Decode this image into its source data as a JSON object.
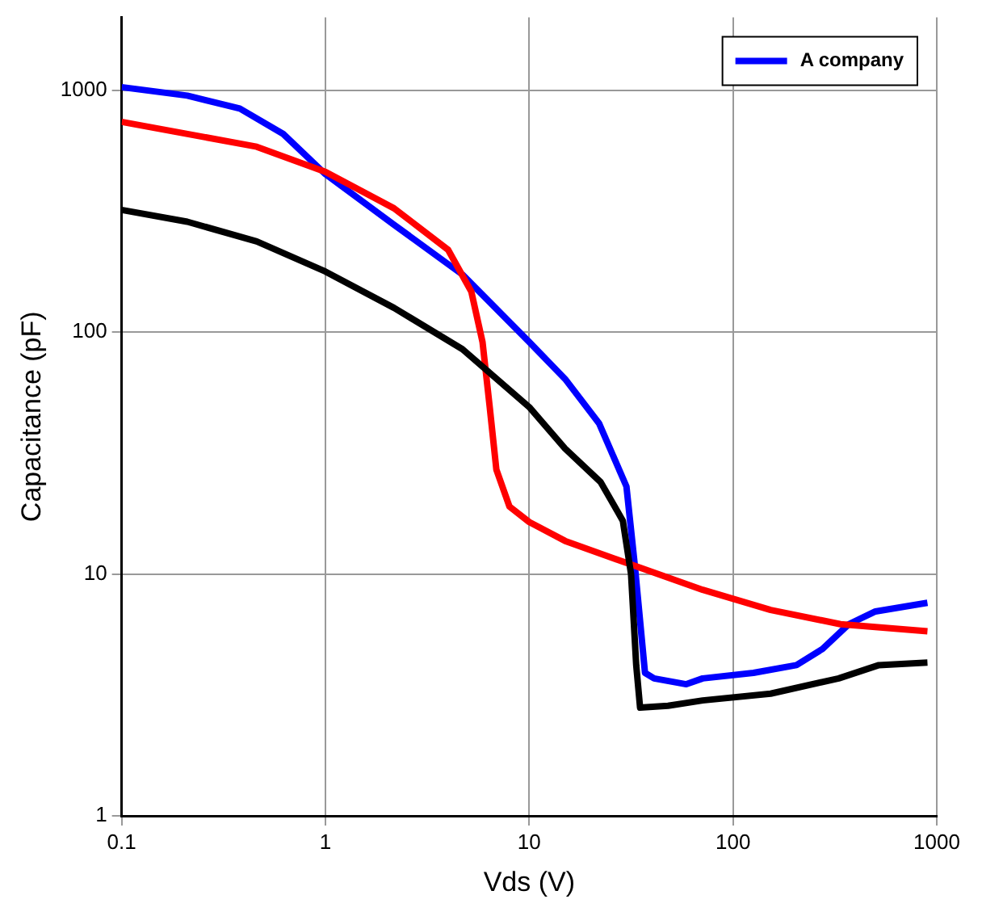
{
  "chart_data": {
    "type": "line",
    "xlabel": "Vds (V)",
    "ylabel": "Capacitance (pF)",
    "log": "xy",
    "grid": true,
    "legend": "top right",
    "marker": "none",
    "line_style": "solid",
    "xlim": [
      0.1,
      1000
    ],
    "xticks": [
      0.1,
      1,
      10,
      100,
      1000
    ],
    "ylim": [
      1,
      2000
    ],
    "yticks": [
      1,
      10,
      100,
      1000
    ],
    "series": [
      {
        "color": "#000000",
        "x": [
          0.1,
          0.21,
          0.46,
          1,
          2.17,
          4.7,
          10,
          15,
          22.4,
          28.8,
          31.6,
          33.5,
          35,
          48,
          71,
          153,
          330,
          520,
          900
        ],
        "values": [
          320,
          286,
          237,
          178,
          126,
          85,
          49,
          33,
          24,
          16.6,
          10,
          4.2,
          2.8,
          2.85,
          3.0,
          3.2,
          3.7,
          4.2,
          4.3
        ]
      },
      {
        "color": "#ff0000",
        "x": [
          0.1,
          0.46,
          1,
          2.17,
          4.0,
          5.2,
          5.9,
          6.4,
          6.9,
          8,
          10,
          15,
          33,
          71,
          153,
          337,
          900
        ],
        "values": [
          740,
          584,
          460,
          325,
          219,
          147,
          91,
          49,
          27,
          19,
          16.4,
          13.7,
          10.8,
          8.6,
          7.1,
          6.2,
          5.8
        ]
      },
      {
        "name": "A company",
        "color": "#0000ff",
        "x": [
          0.1,
          0.21,
          0.38,
          0.62,
          1,
          2.17,
          4.7,
          10,
          15,
          22,
          30,
          33,
          37,
          41,
          59,
          71,
          126,
          205,
          275,
          370,
          500,
          900
        ],
        "values": [
          1030,
          950,
          840,
          660,
          450,
          278,
          173,
          91,
          64,
          42,
          23,
          10.8,
          3.9,
          3.7,
          3.5,
          3.7,
          3.9,
          4.2,
          4.9,
          6.2,
          7.0,
          7.6
        ]
      }
    ]
  }
}
